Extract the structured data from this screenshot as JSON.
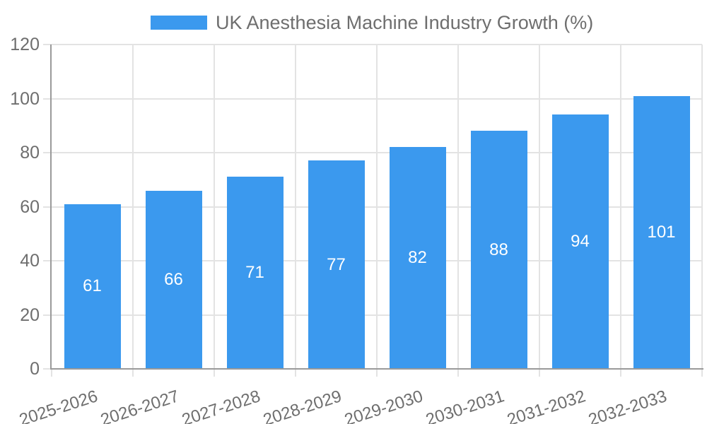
{
  "chart_data": {
    "type": "bar",
    "title": "UK Anesthesia Machine Industry Growth (%)",
    "categories": [
      "2025-2026",
      "2026-2027",
      "2027-2028",
      "2028-2029",
      "2029-2030",
      "2030-2031",
      "2031-2032",
      "2032-2033"
    ],
    "values": [
      61,
      66,
      71,
      77,
      82,
      88,
      94,
      101
    ],
    "xlabel": "",
    "ylabel": "",
    "ylim": [
      0,
      120
    ],
    "yticks": [
      0,
      20,
      40,
      60,
      80,
      100,
      120
    ],
    "grid": true,
    "legend_position": "top-center",
    "x_label_rotation_deg": -18,
    "colors": {
      "bar": "#3B99EE",
      "grid": "#e3e3e3",
      "axis": "#9a9a9a",
      "text": "#6e6e6e",
      "value_label": "#ffffff"
    }
  }
}
